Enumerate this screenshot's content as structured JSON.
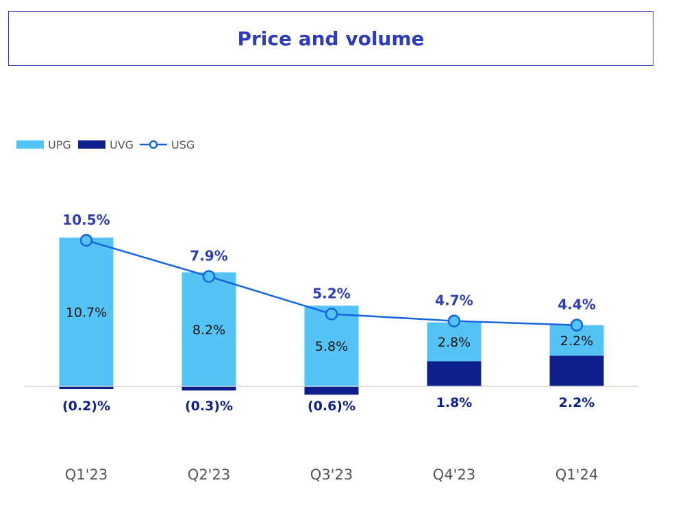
{
  "title": "Price and volume",
  "colors": {
    "upg": "#55c3f5",
    "uvg": "#0c1f8a",
    "usg": "#1565e0",
    "usg_label": "#2e3cb8",
    "uvg_label": "#0c1f8a",
    "inner_label": "#111111",
    "axis": "#d6d6d6",
    "category": "#555555",
    "legend_text": "#555555"
  },
  "chart_data": {
    "type": "bar",
    "categories": [
      "Q1'23",
      "Q2'23",
      "Q3'23",
      "Q4'23",
      "Q1'24"
    ],
    "legend_position": "top-left",
    "series": [
      {
        "name": "UPG",
        "kind": "bar",
        "values": [
          10.7,
          8.2,
          5.8,
          2.8,
          2.2
        ],
        "labels": [
          "10.7%",
          "8.2%",
          "5.8%",
          "2.8%",
          "2.2%"
        ]
      },
      {
        "name": "UVG",
        "kind": "bar",
        "values": [
          -0.2,
          -0.3,
          -0.6,
          1.8,
          2.2
        ],
        "labels": [
          "(0.2)%",
          "(0.3)%",
          "(0.6)%",
          "1.8%",
          "2.2%"
        ]
      },
      {
        "name": "USG",
        "kind": "line",
        "values": [
          10.5,
          7.9,
          5.2,
          4.7,
          4.4
        ],
        "labels": [
          "10.5%",
          "7.9%",
          "5.2%",
          "4.7%",
          "4.4%"
        ]
      }
    ],
    "ylim": [
      -1.2,
      11.5
    ],
    "grid": false
  }
}
